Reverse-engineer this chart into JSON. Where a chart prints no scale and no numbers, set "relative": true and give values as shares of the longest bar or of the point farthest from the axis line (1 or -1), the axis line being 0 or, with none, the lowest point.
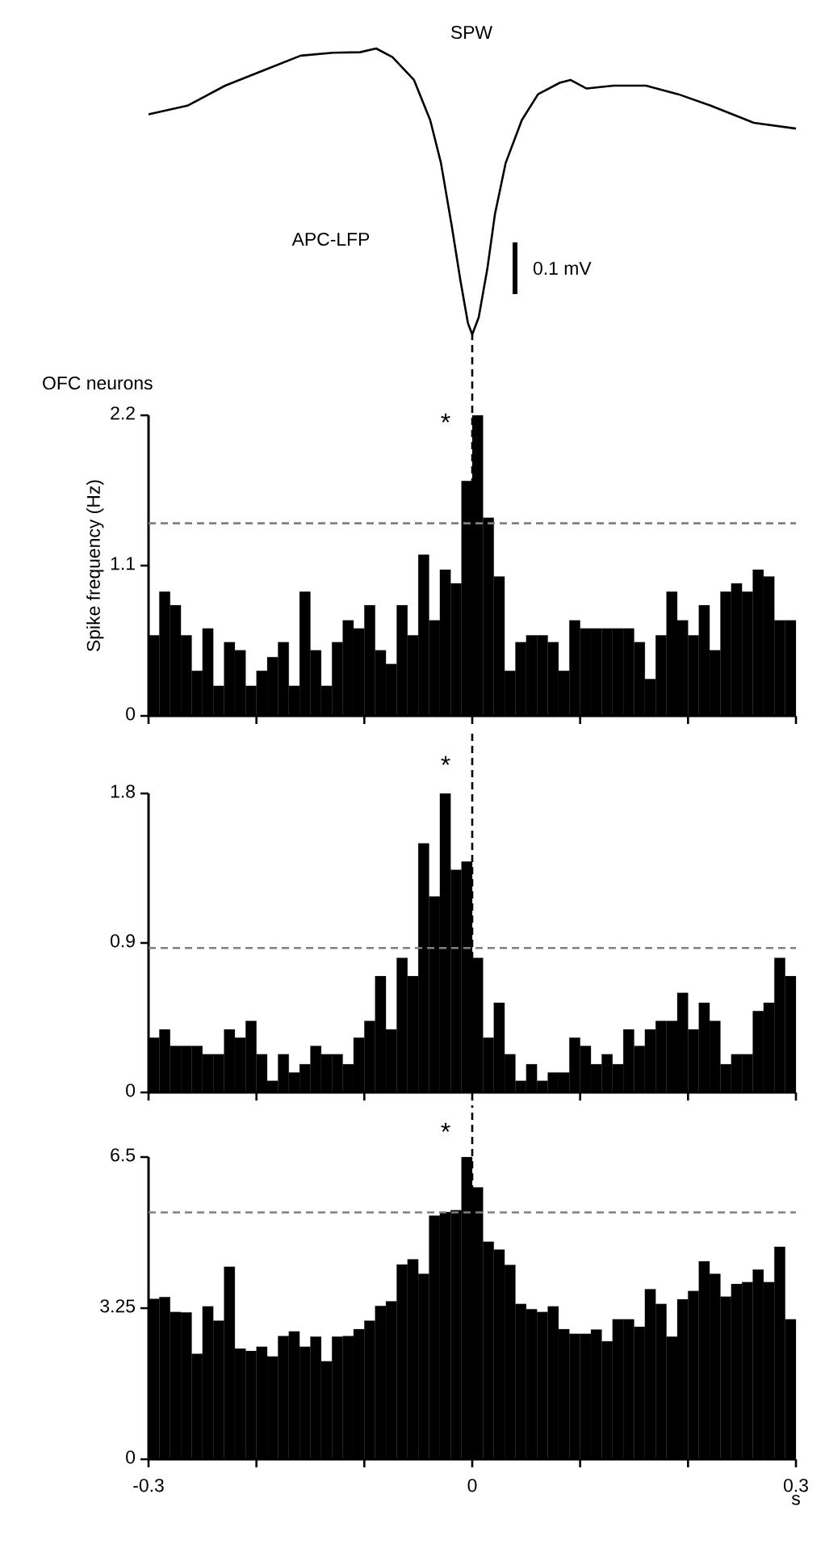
{
  "chart_data": [
    {
      "type": "line",
      "relative": true,
      "title": "SPW",
      "annotations": [
        "APC-LFP",
        "0.1 mV"
      ],
      "color": "#000000",
      "marker": "none",
      "line_style": "solid",
      "xlim": [
        -0.3,
        0.3
      ],
      "tick_labels": false,
      "x": [
        -0.3,
        -0.264,
        -0.229,
        -0.189,
        -0.159,
        -0.129,
        -0.104,
        -0.089,
        -0.074,
        -0.054,
        -0.039,
        -0.029,
        -0.019,
        -0.011,
        -0.004,
        0.0,
        0.006,
        0.014,
        0.021,
        0.031,
        0.046,
        0.061,
        0.081,
        0.091,
        0.106,
        0.131,
        0.161,
        0.191,
        0.221,
        0.261,
        0.3
      ],
      "values": [
        0.77,
        0.8,
        0.87,
        0.93,
        0.975,
        0.985,
        0.987,
        1.0,
        0.97,
        0.89,
        0.75,
        0.6,
        0.38,
        0.19,
        0.04,
        0.0,
        0.06,
        0.23,
        0.42,
        0.6,
        0.75,
        0.84,
        0.88,
        0.89,
        0.86,
        0.87,
        0.87,
        0.84,
        0.8,
        0.74,
        0.72
      ]
    },
    {
      "type": "histogram",
      "title": "OFC neurons",
      "ylabel": "Spike frequency (Hz)",
      "color": "#000000",
      "xlim": [
        -0.3,
        0.3
      ],
      "ylim": [
        0,
        2.2
      ],
      "yticks": [
        0,
        1.1,
        2.2
      ],
      "tick_labels": "y",
      "xticks": [
        {
          "value": -0.3,
          "label": null
        },
        {
          "value": -0.2,
          "label": null
        },
        {
          "value": -0.1,
          "label": null
        },
        {
          "value": 0,
          "label": null
        },
        {
          "value": 0.1,
          "label": null
        },
        {
          "value": 0.2,
          "label": null
        },
        {
          "value": 0.3,
          "label": null
        }
      ],
      "ref_lines": [
        {
          "axis": "x",
          "value": 0,
          "color": "#000000",
          "line_style": "dashed"
        },
        {
          "axis": "y",
          "value": 1.41,
          "color": "#808080",
          "line_style": "dashed"
        }
      ],
      "annotations": [
        "*"
      ],
      "bins": [
        -0.3,
        -0.29,
        -0.28,
        -0.27,
        -0.26,
        -0.25,
        -0.24,
        -0.23,
        -0.22,
        -0.21,
        -0.2,
        -0.19,
        -0.18,
        -0.17,
        -0.16,
        -0.15,
        -0.14,
        -0.13,
        -0.12,
        -0.11,
        -0.1,
        -0.09,
        -0.08,
        -0.07,
        -0.06,
        -0.05,
        -0.04,
        -0.03,
        -0.02,
        -0.01,
        0.0,
        0.01,
        0.02,
        0.03,
        0.04,
        0.05,
        0.06,
        0.07,
        0.08,
        0.09,
        0.1,
        0.11,
        0.12,
        0.13,
        0.14,
        0.15,
        0.16,
        0.17,
        0.18,
        0.19,
        0.2,
        0.21,
        0.22,
        0.23,
        0.24,
        0.25,
        0.26,
        0.27,
        0.28,
        0.29,
        0.3
      ],
      "values": [
        0.59,
        0.91,
        0.81,
        0.59,
        0.33,
        0.64,
        0.22,
        0.54,
        0.48,
        0.22,
        0.33,
        0.43,
        0.54,
        0.22,
        0.91,
        0.48,
        0.22,
        0.54,
        0.7,
        0.64,
        0.81,
        0.48,
        0.38,
        0.81,
        0.59,
        1.18,
        0.7,
        1.07,
        0.97,
        1.72,
        2.2,
        1.45,
        1.02,
        0.33,
        0.54,
        0.59,
        0.59,
        0.54,
        0.33,
        0.7,
        0.64,
        0.64,
        0.64,
        0.64,
        0.64,
        0.54,
        0.27,
        0.59,
        0.91,
        0.7,
        0.59,
        0.81,
        0.48,
        0.91,
        0.97,
        0.91,
        1.07,
        1.02,
        0.7,
        0.7
      ]
    },
    {
      "type": "histogram",
      "color": "#000000",
      "xlim": [
        -0.3,
        0.3
      ],
      "ylim": [
        0,
        1.8
      ],
      "yticks": [
        0,
        0.9,
        1.8
      ],
      "tick_labels": "y",
      "xticks": [
        {
          "value": -0.3,
          "label": null
        },
        {
          "value": -0.2,
          "label": null
        },
        {
          "value": -0.1,
          "label": null
        },
        {
          "value": 0,
          "label": null
        },
        {
          "value": 0.1,
          "label": null
        },
        {
          "value": 0.2,
          "label": null
        },
        {
          "value": 0.3,
          "label": null
        }
      ],
      "ref_lines": [
        {
          "axis": "x",
          "value": 0,
          "color": "#000000",
          "line_style": "dashed"
        },
        {
          "axis": "y",
          "value": 0.87,
          "color": "#808080",
          "line_style": "dashed"
        }
      ],
      "annotations": [
        "*"
      ],
      "bins": [
        -0.3,
        -0.29,
        -0.28,
        -0.27,
        -0.26,
        -0.25,
        -0.24,
        -0.23,
        -0.22,
        -0.21,
        -0.2,
        -0.19,
        -0.18,
        -0.17,
        -0.16,
        -0.15,
        -0.14,
        -0.13,
        -0.12,
        -0.11,
        -0.1,
        -0.09,
        -0.08,
        -0.07,
        -0.06,
        -0.05,
        -0.04,
        -0.03,
        -0.02,
        -0.01,
        0.0,
        0.01,
        0.02,
        0.03,
        0.04,
        0.05,
        0.06,
        0.07,
        0.08,
        0.09,
        0.1,
        0.11,
        0.12,
        0.13,
        0.14,
        0.15,
        0.16,
        0.17,
        0.18,
        0.19,
        0.2,
        0.21,
        0.22,
        0.23,
        0.24,
        0.25,
        0.26,
        0.27,
        0.28,
        0.29,
        0.3
      ],
      "values": [
        0.33,
        0.38,
        0.28,
        0.28,
        0.28,
        0.23,
        0.23,
        0.38,
        0.33,
        0.43,
        0.23,
        0.07,
        0.23,
        0.12,
        0.17,
        0.28,
        0.23,
        0.23,
        0.17,
        0.33,
        0.43,
        0.7,
        0.38,
        0.81,
        0.7,
        1.5,
        1.18,
        1.8,
        1.34,
        1.39,
        0.81,
        0.33,
        0.54,
        0.23,
        0.07,
        0.17,
        0.07,
        0.12,
        0.12,
        0.33,
        0.28,
        0.17,
        0.23,
        0.17,
        0.38,
        0.28,
        0.38,
        0.43,
        0.43,
        0.6,
        0.38,
        0.54,
        0.43,
        0.17,
        0.23,
        0.23,
        0.49,
        0.54,
        0.81,
        0.7
      ]
    },
    {
      "type": "histogram",
      "xlabel": "s",
      "color": "#000000",
      "xlim": [
        -0.3,
        0.3
      ],
      "ylim": [
        0,
        6.5
      ],
      "yticks": [
        0,
        3.25,
        6.5
      ],
      "xticks": [
        -0.3,
        {
          "value": -0.2,
          "label": null
        },
        {
          "value": -0.1,
          "label": null
        },
        0,
        {
          "value": 0.1,
          "label": null
        },
        {
          "value": 0.2,
          "label": null
        },
        0.3
      ],
      "ref_lines": [
        {
          "axis": "x",
          "value": 0,
          "color": "#000000",
          "line_style": "dashed"
        },
        {
          "axis": "y",
          "value": 5.31,
          "color": "#808080",
          "line_style": "dashed"
        }
      ],
      "annotations": [
        "*"
      ],
      "bins": [
        -0.3,
        -0.29,
        -0.28,
        -0.27,
        -0.26,
        -0.25,
        -0.24,
        -0.23,
        -0.22,
        -0.21,
        -0.2,
        -0.19,
        -0.18,
        -0.17,
        -0.16,
        -0.15,
        -0.14,
        -0.13,
        -0.12,
        -0.11,
        -0.1,
        -0.09,
        -0.08,
        -0.07,
        -0.06,
        -0.05,
        -0.04,
        -0.03,
        -0.02,
        -0.01,
        0.0,
        0.01,
        0.02,
        0.03,
        0.04,
        0.05,
        0.06,
        0.07,
        0.08,
        0.09,
        0.1,
        0.11,
        0.12,
        0.13,
        0.14,
        0.15,
        0.16,
        0.17,
        0.18,
        0.19,
        0.2,
        0.21,
        0.22,
        0.23,
        0.24,
        0.25,
        0.26,
        0.27,
        0.28,
        0.29,
        0.3
      ],
      "values": [
        3.45,
        3.49,
        3.17,
        3.16,
        2.27,
        3.29,
        2.98,
        4.14,
        2.38,
        2.33,
        2.42,
        2.21,
        2.65,
        2.75,
        2.42,
        2.64,
        2.11,
        2.64,
        2.65,
        2.8,
        2.98,
        3.3,
        3.4,
        4.19,
        4.3,
        3.99,
        5.24,
        5.32,
        5.36,
        6.5,
        5.85,
        4.68,
        4.51,
        4.18,
        3.34,
        3.23,
        3.17,
        3.29,
        2.8,
        2.7,
        2.7,
        2.79,
        2.54,
        3.01,
        3.01,
        2.85,
        3.66,
        3.34,
        2.64,
        3.44,
        3.62,
        4.26,
        3.99,
        3.5,
        3.77,
        3.81,
        4.08,
        3.81,
        4.57,
        3.01
      ]
    }
  ]
}
